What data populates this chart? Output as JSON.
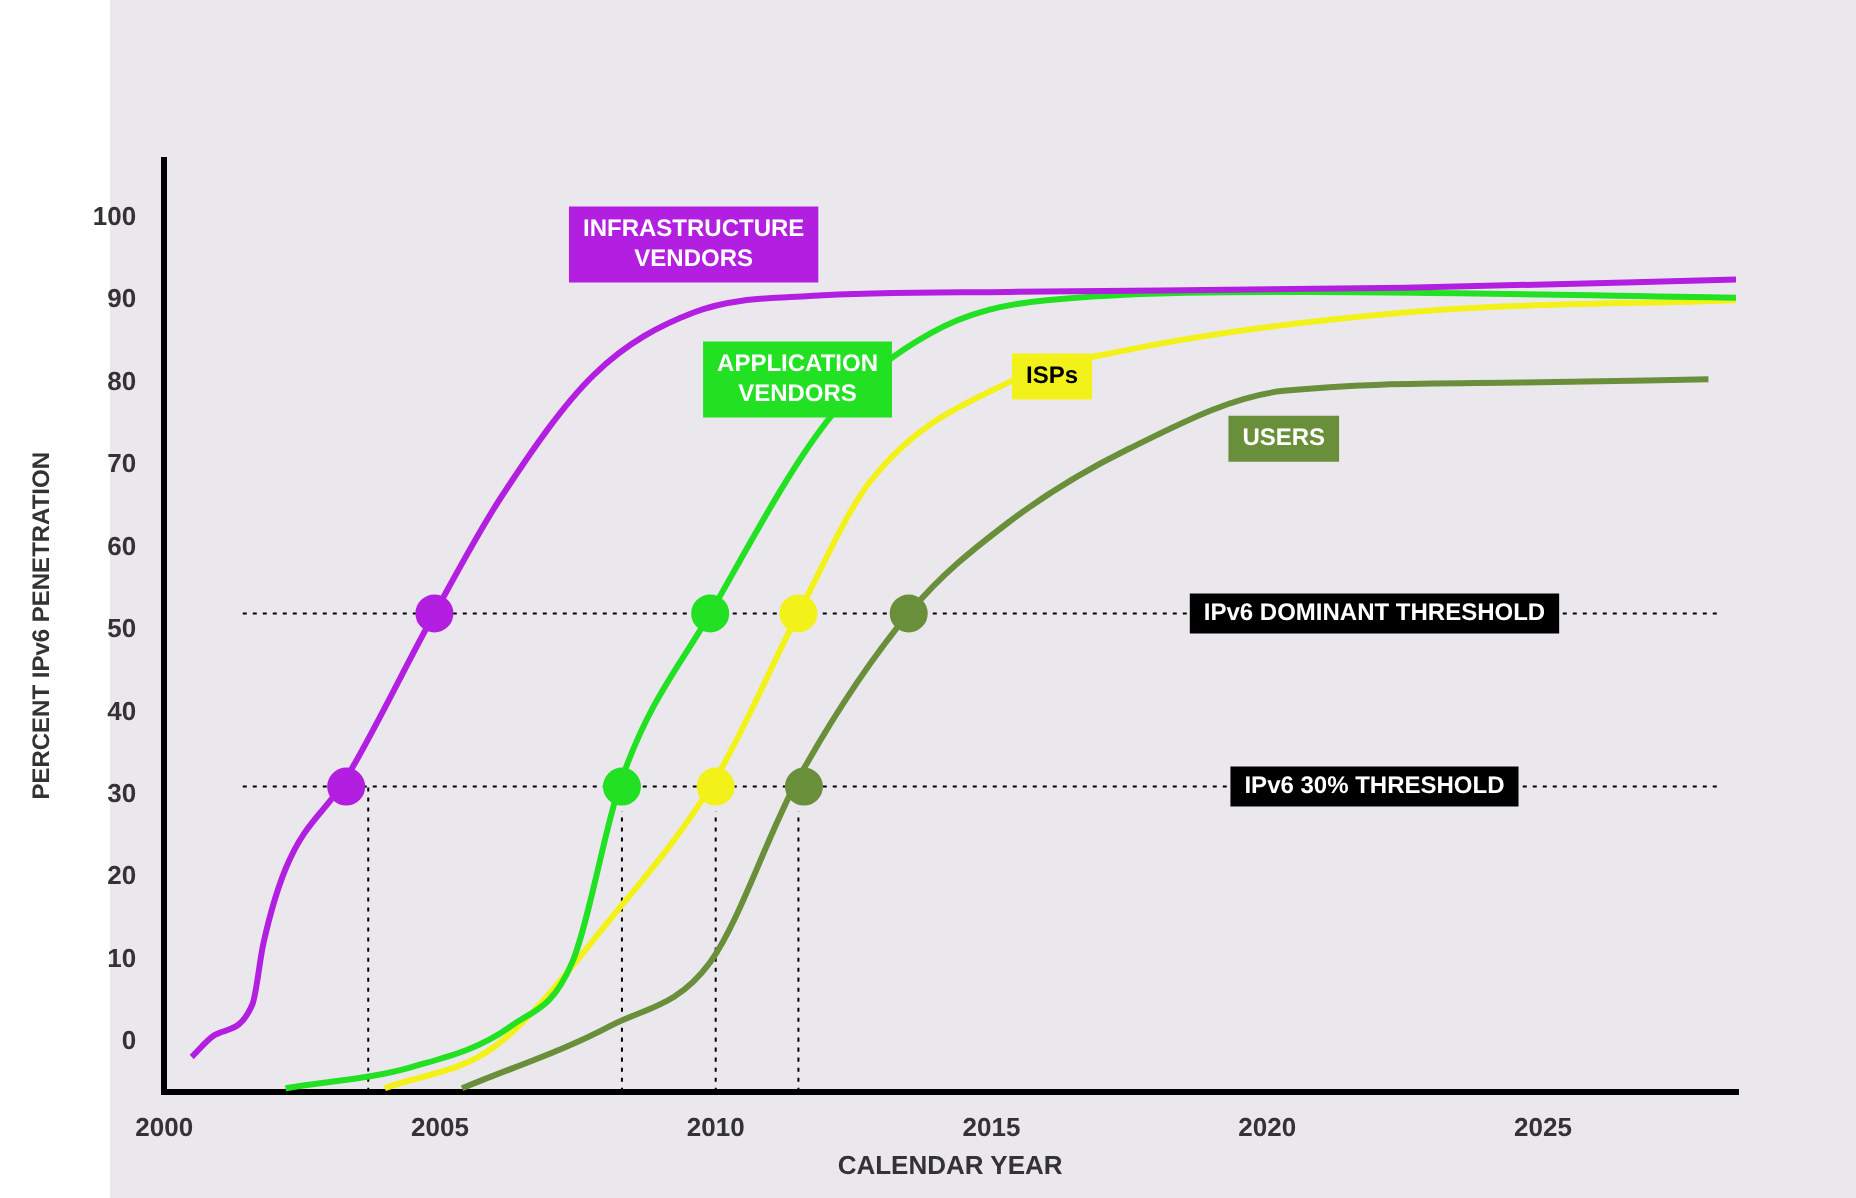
{
  "chart_data": {
    "type": "line",
    "xlabel": "CALENDAR YEAR",
    "ylabel": "PERCENT IPv6 PENETRATION",
    "xlim": [
      2000,
      2028.5
    ],
    "xticks": [
      2000,
      2005,
      2010,
      2015,
      2020,
      2025
    ],
    "ylim": [
      -6,
      107
    ],
    "yticks": [
      0,
      10,
      20,
      30,
      40,
      50,
      60,
      70,
      80,
      90,
      100
    ],
    "grid": false,
    "legend": false,
    "marker": "none",
    "line_style": "solid",
    "series": [
      {
        "name": "INFRASTRUCTURE VENDORS",
        "color": "#b21fe0",
        "x": [
          2000.5,
          2000.9,
          2001.6,
          2001.8,
          2002.2,
          2003.3,
          2004.9,
          2006.1,
          2007.8,
          2009.6,
          2011.7,
          2015.3,
          2022.5,
          2028.5
        ],
        "values": [
          -1.8,
          0.8,
          4.6,
          12,
          21,
          32,
          52,
          66,
          81,
          88.5,
          90.5,
          91,
          91.5,
          92.5
        ]
      },
      {
        "name": "APPLICATION VENDORS",
        "color": "#22e022",
        "x": [
          2002.2,
          2004.5,
          2006.3,
          2007.4,
          2008.3,
          2009.9,
          2012.1,
          2013.9,
          2016,
          2020.7,
          2028.5
        ],
        "values": [
          -5.6,
          -3,
          2,
          9.7,
          32,
          52,
          76,
          86,
          90,
          91,
          90.3
        ]
      },
      {
        "name": "ISPs",
        "color": "#f2f21a",
        "x": [
          2004,
          2006,
          2008.1,
          2010,
          2011.5,
          2012.8,
          2015.3,
          2017.5,
          2022.5,
          2028.5
        ],
        "values": [
          -5.6,
          -0.5,
          15,
          32,
          52,
          68,
          80,
          84,
          88.5,
          90
        ]
      },
      {
        "name": "USERS",
        "color": "#6a8f3a",
        "x": [
          2005.4,
          2008.1,
          2009.9,
          2011.5,
          2013.5,
          2015.3,
          2017.5,
          2020.3,
          2024.6,
          2028
        ],
        "values": [
          -5.6,
          2,
          9.7,
          32,
          52,
          63,
          72,
          79,
          80,
          80.4
        ]
      },
      {
        "type": "line",
        "color": "#000000",
        "line_style": "dotted",
        "x": [
          2003.7,
          2003.7
        ],
        "values": [
          -6,
          31
        ]
      },
      {
        "type": "line",
        "color": "#000000",
        "line_style": "dotted",
        "x": [
          2008.3,
          2008.3
        ],
        "values": [
          -6,
          28
        ]
      },
      {
        "type": "line",
        "color": "#000000",
        "line_style": "dotted",
        "x": [
          2010,
          2010
        ],
        "values": [
          -6,
          28
        ]
      },
      {
        "type": "line",
        "color": "#000000",
        "line_style": "dotted",
        "x": [
          2011.5,
          2011.5
        ],
        "values": [
          -6,
          28
        ]
      },
      {
        "type": "scatter",
        "color": "#b21fe0",
        "marker": "circle",
        "x": [
          2003.3,
          2004.9
        ],
        "values": [
          31,
          52
        ]
      },
      {
        "type": "scatter",
        "color": "#22e022",
        "marker": "circle",
        "x": [
          2008.3,
          2009.9
        ],
        "values": [
          31,
          52
        ]
      },
      {
        "type": "scatter",
        "color": "#f2f21a",
        "marker": "circle",
        "x": [
          2010,
          2011.5
        ],
        "values": [
          31,
          52
        ]
      },
      {
        "type": "scatter",
        "color": "#6a8f3a",
        "marker": "circle",
        "x": [
          2011.6,
          2013.5
        ],
        "values": [
          31,
          52
        ]
      }
    ],
    "ref_lines": [
      {
        "axis": "y",
        "value": 52,
        "label": "IPv6 DOMINANT THRESHOLD",
        "color": "#000000",
        "line_style": "dotted"
      },
      {
        "axis": "y",
        "value": 31,
        "label": "IPv6 30% THRESHOLD",
        "color": "#000000",
        "line_style": "dotted"
      }
    ]
  }
}
